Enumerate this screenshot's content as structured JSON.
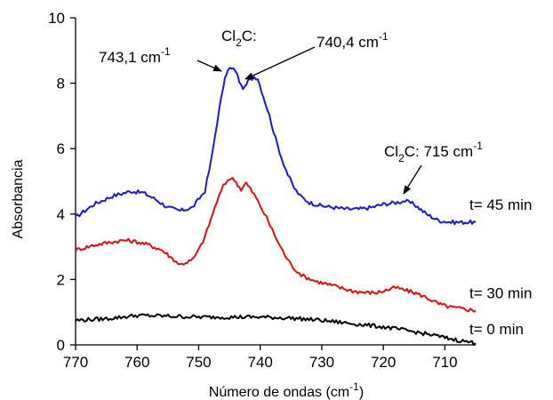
{
  "chart_data": {
    "type": "line",
    "xlabel": "Número de ondas (cm",
    "xlabel_sup": "-1",
    "xlabel_end": ")",
    "ylabel": "Absorbancia",
    "xlim": [
      770,
      705
    ],
    "ylim": [
      0,
      10
    ],
    "x_reversed": true,
    "xticks": [
      770,
      760,
      750,
      740,
      730,
      720,
      710
    ],
    "yticks": [
      0,
      2,
      4,
      6,
      8,
      10
    ],
    "grid": false,
    "series": [
      {
        "name": "t= 45 min",
        "color": "#1a1adb",
        "x": [
          770,
          767,
          764,
          761,
          759,
          757,
          755,
          753,
          751,
          749,
          748,
          747,
          746,
          745.5,
          745,
          744,
          743.1,
          742.5,
          742,
          741,
          740.4,
          739.5,
          738.5,
          737.5,
          736.5,
          735.5,
          734.5,
          733.5,
          732,
          730,
          728,
          726,
          724,
          722,
          720,
          718,
          716.5,
          715,
          713,
          711,
          709,
          707,
          705
        ],
        "y": [
          3.9,
          4.3,
          4.55,
          4.7,
          4.65,
          4.45,
          4.2,
          4.1,
          4.2,
          4.7,
          5.6,
          6.8,
          7.9,
          8.3,
          8.45,
          8.4,
          7.9,
          7.85,
          8.05,
          8.2,
          8.15,
          7.6,
          7.0,
          6.3,
          5.7,
          5.2,
          4.8,
          4.55,
          4.35,
          4.25,
          4.2,
          4.15,
          4.15,
          4.2,
          4.3,
          4.35,
          4.4,
          4.3,
          4.0,
          3.8,
          3.75,
          3.75,
          3.75
        ]
      },
      {
        "name": "t= 30 min",
        "color": "#e01010",
        "x": [
          770,
          767,
          764,
          762,
          760,
          758,
          756,
          754,
          753,
          751,
          750,
          749,
          748,
          747,
          746,
          745,
          744.2,
          743.1,
          742.3,
          741,
          740,
          739,
          738,
          737,
          736,
          735,
          734,
          733,
          731,
          729,
          727,
          725,
          723,
          721,
          719,
          718,
          717,
          715,
          713,
          711,
          709,
          707,
          705
        ],
        "y": [
          2.9,
          3.05,
          3.15,
          3.2,
          3.15,
          3.05,
          2.9,
          2.6,
          2.45,
          2.6,
          2.9,
          3.3,
          3.85,
          4.4,
          4.85,
          5.1,
          5.05,
          4.75,
          4.95,
          4.6,
          4.25,
          3.9,
          3.5,
          3.1,
          2.75,
          2.45,
          2.25,
          2.1,
          1.95,
          1.85,
          1.75,
          1.65,
          1.6,
          1.6,
          1.7,
          1.75,
          1.7,
          1.6,
          1.45,
          1.25,
          1.15,
          1.1,
          1.05
        ]
      },
      {
        "name": "t= 0 min",
        "color": "#000000",
        "x": [
          770,
          765,
          760,
          755,
          750,
          745,
          740,
          735,
          730,
          725,
          720,
          715,
          712,
          710,
          708,
          705
        ],
        "y": [
          0.75,
          0.8,
          0.9,
          0.88,
          0.85,
          0.85,
          0.85,
          0.82,
          0.75,
          0.65,
          0.55,
          0.4,
          0.3,
          0.22,
          0.15,
          0.05
        ]
      }
    ],
    "annotations": [
      {
        "text": "743,1 cm",
        "sup": "-1"
      },
      {
        "text": "740,4 cm",
        "sup": "-1"
      },
      {
        "text": "Cl",
        "sub": "2",
        "text2": "C:"
      },
      {
        "text": "Cl",
        "sub": "2",
        "text2": "C: 715 cm",
        "sup": "-1"
      }
    ]
  }
}
